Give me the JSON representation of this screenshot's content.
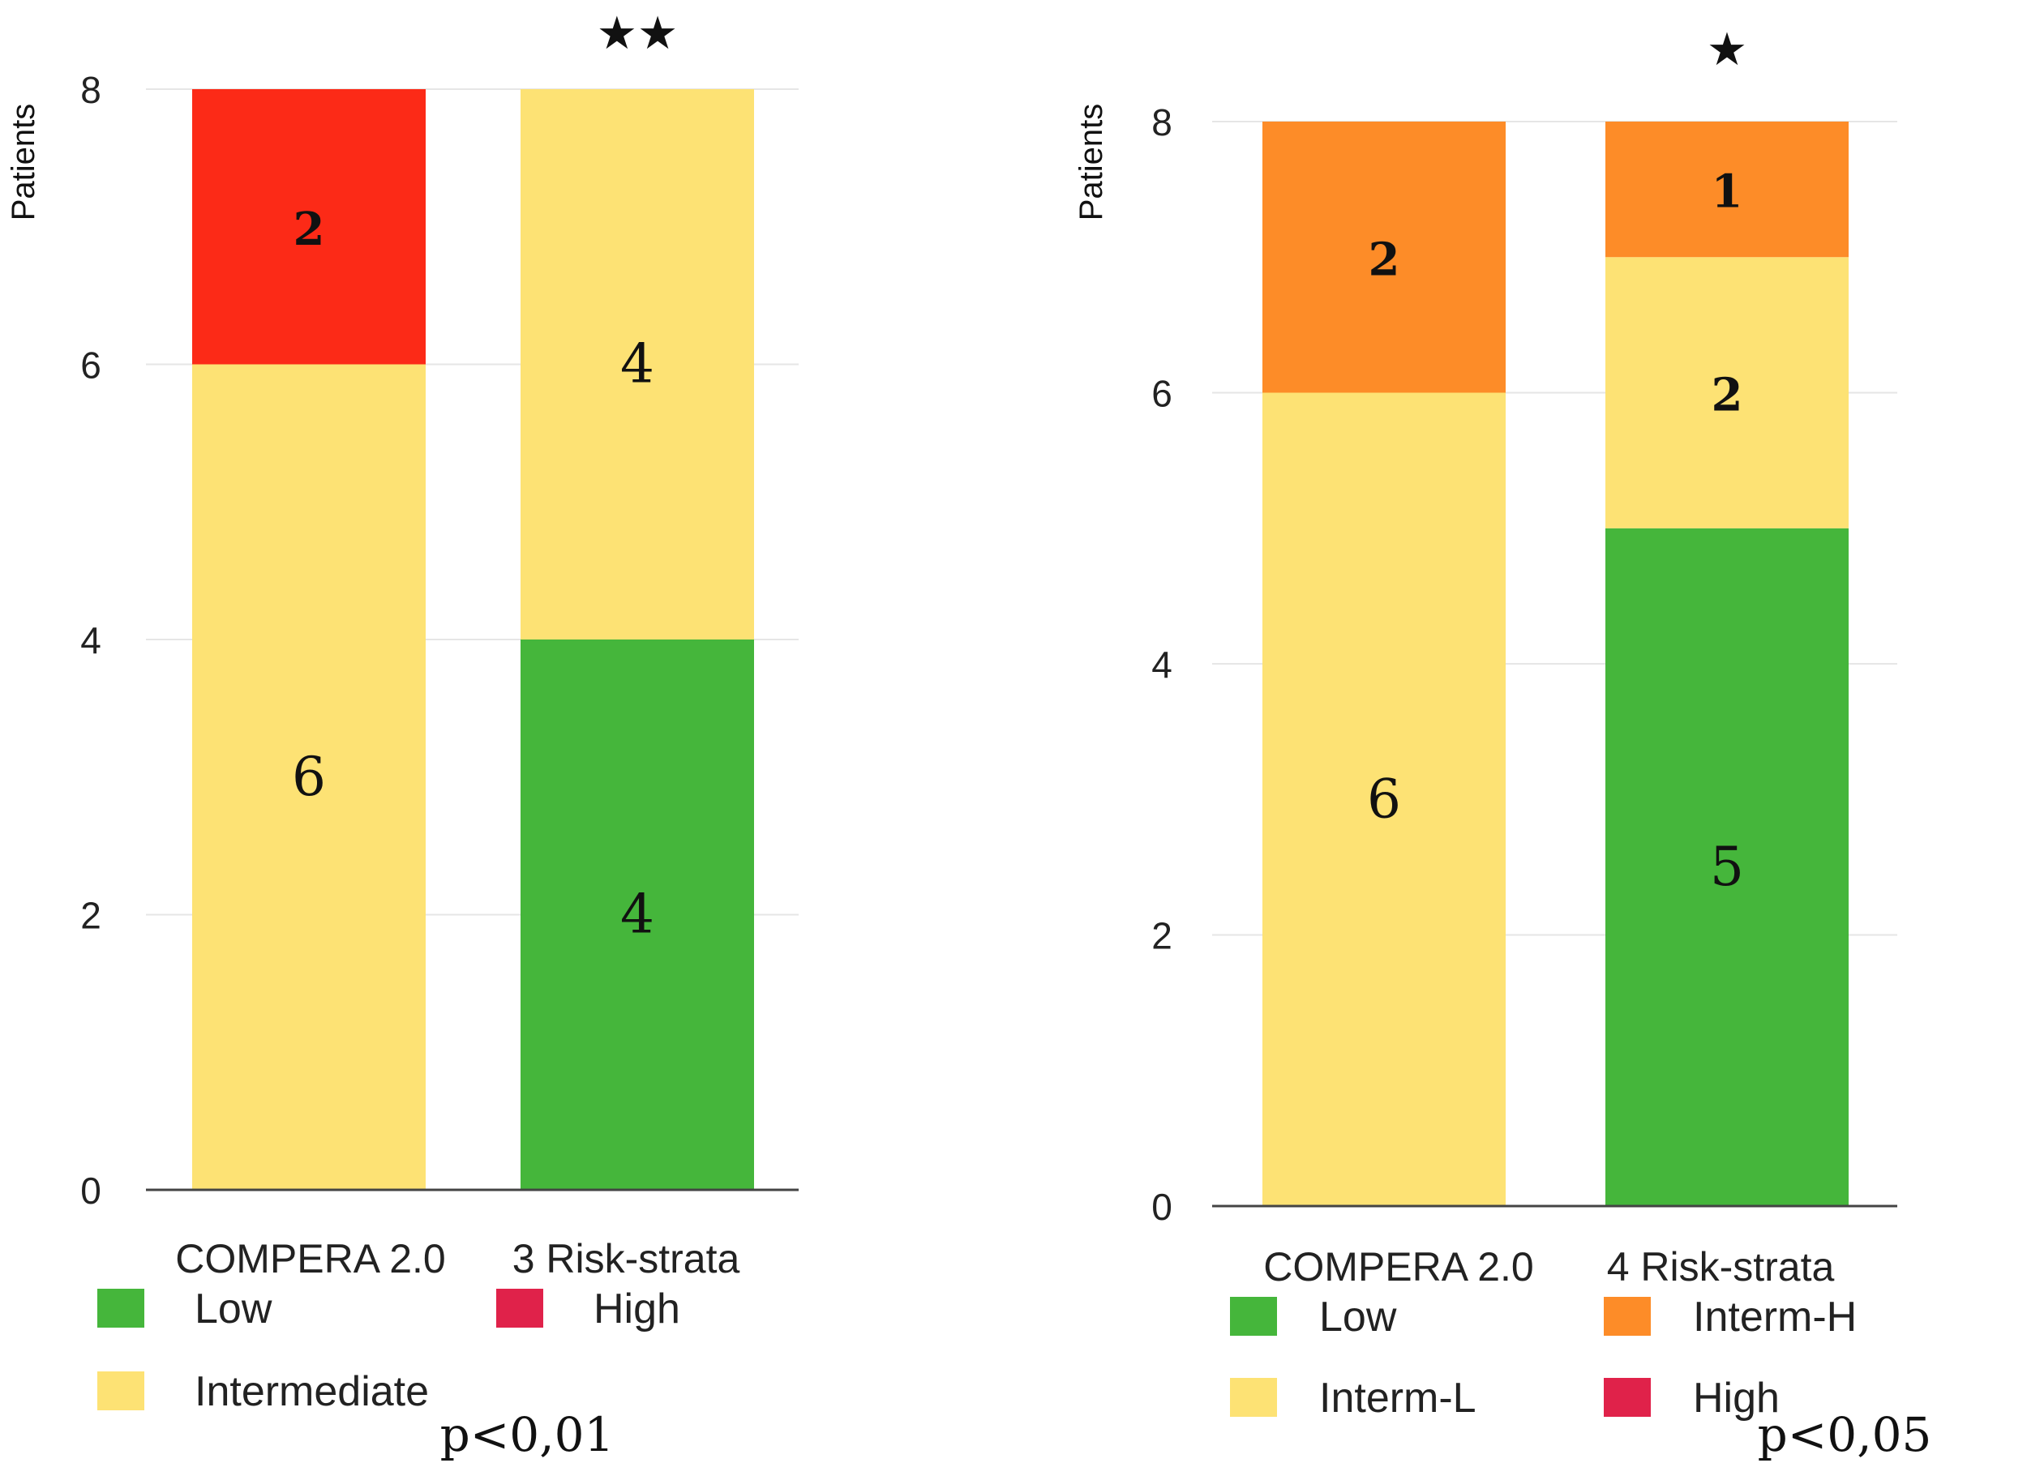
{
  "figure": {
    "background": "#ffffff"
  },
  "chart_data": [
    {
      "type": "bar",
      "stacked": true,
      "title": "",
      "ylabel": "Patients",
      "xlabel": "",
      "ylim": [
        0,
        8
      ],
      "yticks": [
        0,
        2,
        4,
        6,
        8
      ],
      "grid": true,
      "categories": [
        "COMPERA 2.0",
        "3 Risk-strata"
      ],
      "series": [
        {
          "name": "Low",
          "color": "#45b63b",
          "values": [
            0,
            4
          ],
          "labels": [
            "",
            "4"
          ]
        },
        {
          "name": "Intermediate",
          "color": "#fde274",
          "values": [
            6,
            4
          ],
          "labels": [
            "6",
            "4"
          ]
        },
        {
          "name": "High",
          "color": "#fc2a17",
          "values": [
            2,
            0
          ],
          "labels": [
            "2",
            ""
          ]
        }
      ],
      "significance": [
        "",
        "★★"
      ],
      "legend": [
        {
          "name": "Low",
          "color": "#45b63b"
        },
        {
          "name": "High",
          "color": "#e0224a"
        },
        {
          "name": "Intermediate",
          "color": "#fde274"
        }
      ],
      "p_value": "p<0,01"
    },
    {
      "type": "bar",
      "stacked": true,
      "title": "",
      "ylabel": "Patients",
      "xlabel": "",
      "ylim": [
        0,
        8
      ],
      "yticks": [
        0,
        2,
        4,
        6,
        8
      ],
      "grid": true,
      "categories": [
        "COMPERA 2.0",
        "4 Risk-strata"
      ],
      "series": [
        {
          "name": "Low",
          "color": "#45b63b",
          "values": [
            0,
            5
          ],
          "labels": [
            "",
            "5"
          ]
        },
        {
          "name": "Interm-L",
          "color": "#fde274",
          "values": [
            6,
            2
          ],
          "labels": [
            "6",
            "2"
          ]
        },
        {
          "name": "Interm-H",
          "color": "#fd8c28",
          "values": [
            2,
            1
          ],
          "labels": [
            "2",
            "1"
          ]
        },
        {
          "name": "High",
          "color": "#e0224a",
          "values": [
            0,
            0
          ],
          "labels": [
            "",
            ""
          ]
        }
      ],
      "significance": [
        "",
        "★"
      ],
      "legend": [
        {
          "name": "Low",
          "color": "#45b63b"
        },
        {
          "name": "Interm-H",
          "color": "#fd8c28"
        },
        {
          "name": "Interm-L",
          "color": "#fde274"
        },
        {
          "name": "High",
          "color": "#e0224a"
        }
      ],
      "p_value": "p<0,05"
    }
  ]
}
